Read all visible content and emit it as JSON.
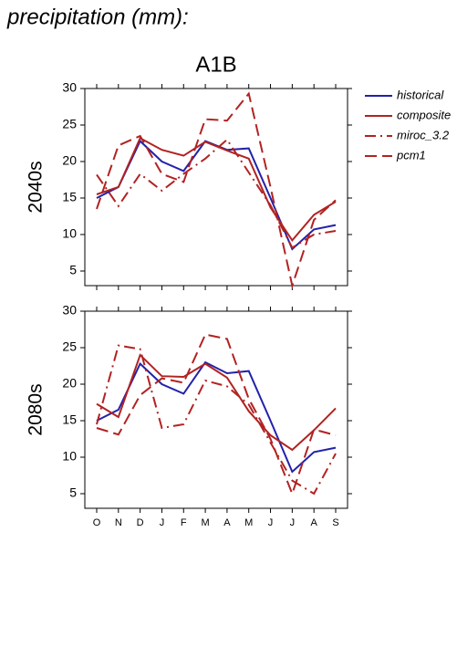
{
  "header": {
    "title": "precipitation (mm):"
  },
  "chart_data": [
    {
      "type": "line",
      "title": "A1B",
      "ylabel": "2040s",
      "ylim": [
        3,
        30
      ],
      "yticks": [
        5,
        10,
        15,
        20,
        25,
        30
      ],
      "series": [
        {
          "name": "historical",
          "color": "#2222aa",
          "dash": "solid",
          "values": [
            15,
            16.5,
            22.8,
            20,
            18.7,
            22.8,
            21.6,
            21.8,
            15,
            8,
            10.7,
            11.3
          ]
        },
        {
          "name": "composite",
          "color": "#b22222",
          "dash": "solid",
          "values": [
            15.5,
            16.5,
            23.2,
            21.6,
            20.8,
            22.7,
            21.5,
            20.4,
            13.7,
            9.2,
            12.7,
            14.5
          ]
        },
        {
          "name": "miroc_3.2",
          "color": "#b22222",
          "dash": "dashdot",
          "values": [
            18.2,
            13.9,
            18.3,
            16,
            18.3,
            20.4,
            23,
            18.5,
            14,
            8.2,
            10,
            10.5
          ]
        },
        {
          "name": "pcm1",
          "color": "#b22222",
          "dash": "dashed",
          "values": [
            13.5,
            22.2,
            23.5,
            18.3,
            17.2,
            25.8,
            25.6,
            29.3,
            16.5,
            3,
            12,
            14.7
          ]
        }
      ]
    },
    {
      "type": "line",
      "ylabel": "2080s",
      "categories": [
        "O",
        "N",
        "D",
        "J",
        "F",
        "M",
        "A",
        "M",
        "J",
        "J",
        "A",
        "S"
      ],
      "ylim": [
        3,
        30
      ],
      "yticks": [
        5,
        10,
        15,
        20,
        25,
        30
      ],
      "series": [
        {
          "color": "#2222aa",
          "dash": "solid",
          "values": [
            15,
            16.5,
            22.8,
            20,
            18.7,
            23,
            21.5,
            21.8,
            15,
            8,
            10.7,
            11.3
          ]
        },
        {
          "color": "#b22222",
          "dash": "solid",
          "values": [
            17.3,
            15.5,
            24,
            21.1,
            21,
            22.8,
            20.9,
            16.3,
            13,
            11,
            13.7,
            16.7
          ]
        },
        {
          "color": "#b22222",
          "dash": "dashdot",
          "values": [
            14.5,
            25.3,
            24.8,
            14,
            14.5,
            20.5,
            19.7,
            17.2,
            12,
            6.8,
            5,
            10.5
          ]
        },
        {
          "color": "#b22222",
          "dash": "dashed",
          "values": [
            14,
            13.1,
            18.5,
            20.8,
            20.2,
            26.8,
            26.2,
            18,
            12.5,
            5,
            13.8,
            13
          ]
        }
      ]
    }
  ]
}
